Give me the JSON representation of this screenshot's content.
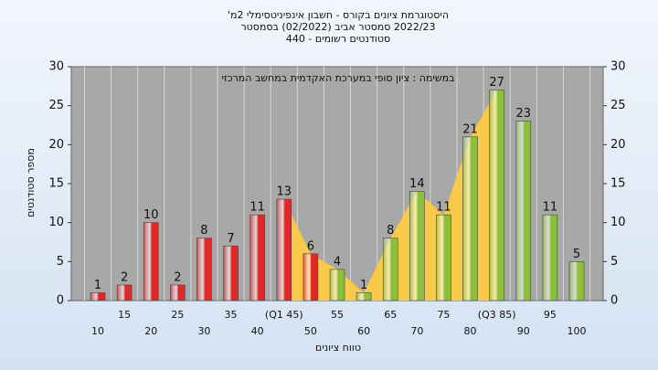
{
  "chart_data": {
    "type": "bar",
    "title": "היסטוגרמת ציונים בקורס - חשבון אינפיניטסימלי 2מ'",
    "subtitle": "2022/23 סמסטר אביב  (02/2022)  בסמסטר",
    "subtitle2": "סטודנטים רשומים - 440",
    "annotation": "במשימה : ציון סופי במערכת האקדמית במחשב המרכזי",
    "x_label": "טווח ציונים",
    "y_label": "מספר סטודנטים",
    "categories": [
      "10",
      "15",
      "20",
      "25",
      "30",
      "35",
      "40",
      "(Q1 45)",
      "50",
      "55",
      "60",
      "65",
      "70",
      "75",
      "80",
      "(Q3 85)",
      "90",
      "95",
      "100"
    ],
    "values": [
      1,
      2,
      10,
      2,
      8,
      7,
      11,
      13,
      6,
      4,
      1,
      8,
      14,
      11,
      21,
      27,
      23,
      11,
      5
    ],
    "colors": [
      "#e02828",
      "#e02828",
      "#e02828",
      "#e02828",
      "#e02828",
      "#e02828",
      "#e02828",
      "#e02828",
      "#e02828",
      "#8cbf3a",
      "#8cbf3a",
      "#8cbf3a",
      "#8cbf3a",
      "#8cbf3a",
      "#8cbf3a",
      "#8cbf3a",
      "#8cbf3a",
      "#8cbf3a",
      "#8cbf3a"
    ],
    "highlight_color": "#f8c94a",
    "ylim": [
      0,
      30
    ],
    "yticks": [
      0,
      5,
      10,
      15,
      20,
      25,
      30
    ],
    "y2lim": [
      0,
      30
    ],
    "y2ticks": [
      0,
      5,
      10,
      15,
      20,
      25,
      30
    ]
  }
}
